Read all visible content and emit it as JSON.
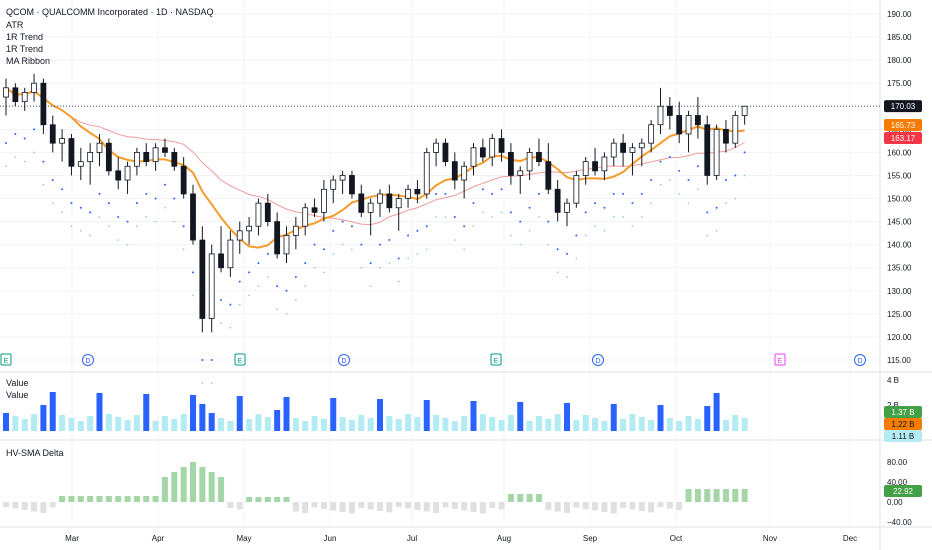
{
  "header": {
    "title": "QCOM · QUALCOMM Incorporated · 1D · NASDAQ",
    "indicators": [
      "ATR",
      "1R Trend",
      "1R Trend",
      "MA Ribbon"
    ]
  },
  "volume_pane": {
    "labels": [
      "Value",
      "Value"
    ]
  },
  "hv_pane": {
    "label": "HV-SMA Delta"
  },
  "x_axis": {
    "months": [
      "Mar",
      "Apr",
      "May",
      "Jun",
      "Jul",
      "Aug",
      "Sep",
      "Oct",
      "Nov",
      "Dec"
    ]
  },
  "price_axis": {
    "ticks": [
      "190.00",
      "185.00",
      "180.00",
      "175.00",
      "170.00",
      "165.00",
      "160.00",
      "155.00",
      "150.00",
      "145.00",
      "140.00",
      "135.00",
      "130.00",
      "125.00",
      "120.00",
      "115.00"
    ]
  },
  "volume_axis": {
    "ticks": [
      "4 B",
      "2 B"
    ]
  },
  "hv_axis": {
    "ticks": [
      "80.00",
      "40.00",
      "0.00",
      "−40.00"
    ]
  },
  "badges": {
    "last_price": "170.03",
    "ma_fast": "165.73",
    "ma_slow": "163.17",
    "vol_1": "1.37 B",
    "vol_2": "1.22 B",
    "vol_3": "1.11 B",
    "hv": "22.92"
  },
  "events": [
    "E",
    "D",
    "E",
    "D",
    "E",
    "D",
    "E",
    "D"
  ],
  "colors": {
    "up": "#131722",
    "down": "#131722",
    "ma_fast": "#f59b2a",
    "ma_slow": "#ef9a9a",
    "atr_dots": "#2962ff",
    "vol_blue": "#2962ff",
    "vol_light": "#b2ebf2",
    "hv_pos": "#a5d6a7",
    "hv_neg": "#e0e0e0",
    "earnings": "#089981",
    "dividend": "#2962ff",
    "future_earnings": "#e040fb",
    "last_price_bg": "#131722",
    "ma_fast_bg": "#f57c00",
    "ma_slow_bg": "#f23645",
    "vol_badge_1": "#43a047",
    "vol_badge_2": "#f57c00",
    "vol_badge_3": "#b2ebf2",
    "hv_badge": "#43a047"
  },
  "chart_data": {
    "type": "candlestick",
    "symbol": "QCOM",
    "interval": "1D",
    "y_range": [
      115,
      190
    ],
    "series": [
      {
        "name": "Price",
        "points": [
          [
            172,
            176,
            168,
            174
          ],
          [
            174,
            175,
            170,
            171
          ],
          [
            171,
            174,
            169,
            173
          ],
          [
            173,
            177,
            171,
            175
          ],
          [
            175,
            176,
            164,
            166
          ],
          [
            166,
            168,
            160,
            162
          ],
          [
            162,
            165,
            158,
            163
          ],
          [
            163,
            164,
            155,
            157
          ],
          [
            157,
            161,
            154,
            158
          ],
          [
            158,
            162,
            153,
            160
          ],
          [
            160,
            164,
            157,
            162
          ],
          [
            162,
            163,
            155,
            156
          ],
          [
            156,
            159,
            152,
            154
          ],
          [
            154,
            158,
            151,
            157
          ],
          [
            157,
            161,
            155,
            160
          ],
          [
            160,
            162,
            157,
            158
          ],
          [
            158,
            162,
            156,
            161
          ],
          [
            161,
            163,
            159,
            160
          ],
          [
            160,
            161,
            156,
            157
          ],
          [
            157,
            159,
            150,
            151
          ],
          [
            151,
            153,
            140,
            141
          ],
          [
            141,
            144,
            121,
            124
          ],
          [
            124,
            140,
            121,
            138
          ],
          [
            138,
            144,
            134,
            135
          ],
          [
            135,
            143,
            133,
            141
          ],
          [
            141,
            145,
            138,
            143
          ],
          [
            143,
            146,
            140,
            144
          ],
          [
            144,
            150,
            142,
            149
          ],
          [
            149,
            151,
            144,
            145
          ],
          [
            145,
            147,
            137,
            138
          ],
          [
            138,
            144,
            136,
            142
          ],
          [
            142,
            146,
            139,
            144
          ],
          [
            144,
            149,
            142,
            148
          ],
          [
            148,
            150,
            146,
            147
          ],
          [
            147,
            154,
            145,
            152
          ],
          [
            152,
            155,
            149,
            154
          ],
          [
            154,
            156,
            151,
            155
          ],
          [
            155,
            156,
            150,
            151
          ],
          [
            151,
            153,
            146,
            147
          ],
          [
            147,
            150,
            142,
            149
          ],
          [
            149,
            152,
            146,
            151
          ],
          [
            151,
            153,
            147,
            148
          ],
          [
            148,
            151,
            143,
            150
          ],
          [
            150,
            153,
            148,
            152
          ],
          [
            152,
            154,
            149,
            151
          ],
          [
            151,
            161,
            150,
            160
          ],
          [
            160,
            163,
            157,
            162
          ],
          [
            162,
            163,
            157,
            158
          ],
          [
            158,
            160,
            152,
            154
          ],
          [
            154,
            158,
            150,
            157
          ],
          [
            157,
            162,
            155,
            161
          ],
          [
            161,
            163,
            158,
            159
          ],
          [
            159,
            164,
            157,
            163
          ],
          [
            163,
            165,
            158,
            160
          ],
          [
            160,
            162,
            153,
            155
          ],
          [
            155,
            157,
            151,
            156
          ],
          [
            156,
            161,
            154,
            160
          ],
          [
            160,
            163,
            157,
            158
          ],
          [
            158,
            162,
            151,
            152
          ],
          [
            152,
            154,
            145,
            147
          ],
          [
            147,
            150,
            144,
            149
          ],
          [
            149,
            156,
            148,
            155
          ],
          [
            155,
            159,
            153,
            158
          ],
          [
            158,
            161,
            155,
            156
          ],
          [
            156,
            160,
            154,
            159
          ],
          [
            159,
            163,
            157,
            162
          ],
          [
            162,
            164,
            157,
            160
          ],
          [
            160,
            162,
            155,
            161
          ],
          [
            161,
            163,
            157,
            162
          ],
          [
            162,
            167,
            160,
            166
          ],
          [
            166,
            174,
            164,
            170
          ],
          [
            170,
            172,
            165,
            168
          ],
          [
            168,
            171,
            162,
            164
          ],
          [
            164,
            169,
            160,
            168
          ],
          [
            168,
            172,
            163,
            166
          ],
          [
            166,
            168,
            153,
            155
          ],
          [
            155,
            166,
            154,
            165
          ],
          [
            165,
            167,
            160,
            162
          ],
          [
            162,
            169,
            161,
            168
          ],
          [
            168,
            170,
            166,
            170
          ]
        ]
      },
      {
        "name": "MA Ribbon fast"
      },
      {
        "name": "MA Ribbon slow"
      },
      {
        "name": "Value"
      },
      {
        "name": "HV-SMA Delta"
      }
    ]
  }
}
